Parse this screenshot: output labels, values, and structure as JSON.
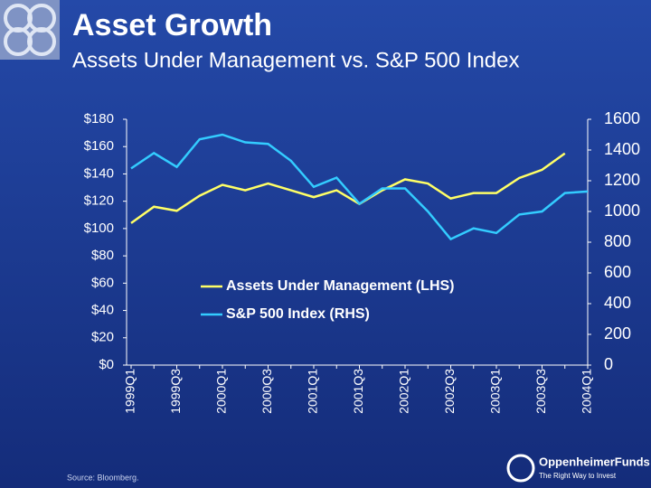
{
  "title": "Asset Growth",
  "subtitle": "Assets Under Management vs. S&P 500 Index",
  "source": "Source: Bloomberg.",
  "logo": {
    "name": "OppenheimerFunds",
    "tagline": "The Right Way to Invest"
  },
  "chart_data": {
    "type": "line",
    "categories": [
      "1999Q1",
      null,
      "1999Q3",
      null,
      "2000Q1",
      null,
      "2000Q3",
      null,
      "2001Q1",
      null,
      "2001Q3",
      null,
      "2002Q1",
      null,
      "2002Q3",
      null,
      "2003Q1",
      null,
      "2003Q3",
      null,
      "2004Q1"
    ],
    "series": [
      {
        "name": "Assets Under Management (LHS)",
        "color": "#ffff66",
        "axis": "y",
        "values": [
          104,
          116,
          113,
          124,
          132,
          128,
          133,
          128,
          123,
          128,
          118,
          128,
          136,
          133,
          122,
          126,
          126,
          137,
          143,
          155,
          null
        ]
      },
      {
        "name": "S&P 500 Index (RHS)",
        "color": "#33ccff",
        "axis": "y2",
        "values": [
          1280,
          1380,
          1290,
          1470,
          1500,
          1450,
          1440,
          1330,
          1160,
          1220,
          1050,
          1150,
          1150,
          1000,
          820,
          890,
          860,
          980,
          1000,
          1120,
          1130
        ]
      }
    ],
    "ylim": [
      0,
      180
    ],
    "yticks": [
      {
        "value": 0,
        "label": "$0"
      },
      {
        "value": 20,
        "label": "$20"
      },
      {
        "value": 40,
        "label": "$40"
      },
      {
        "value": 60,
        "label": "$60"
      },
      {
        "value": 80,
        "label": "$80"
      },
      {
        "value": 100,
        "label": "$100"
      },
      {
        "value": 120,
        "label": "$120"
      },
      {
        "value": 140,
        "label": "$140"
      },
      {
        "value": 160,
        "label": "$160"
      },
      {
        "value": 180,
        "label": "$180"
      }
    ],
    "y2lim": [
      0,
      1600
    ],
    "y2ticks": [
      0,
      200,
      400,
      600,
      800,
      1000,
      1200,
      1400,
      1600
    ]
  }
}
